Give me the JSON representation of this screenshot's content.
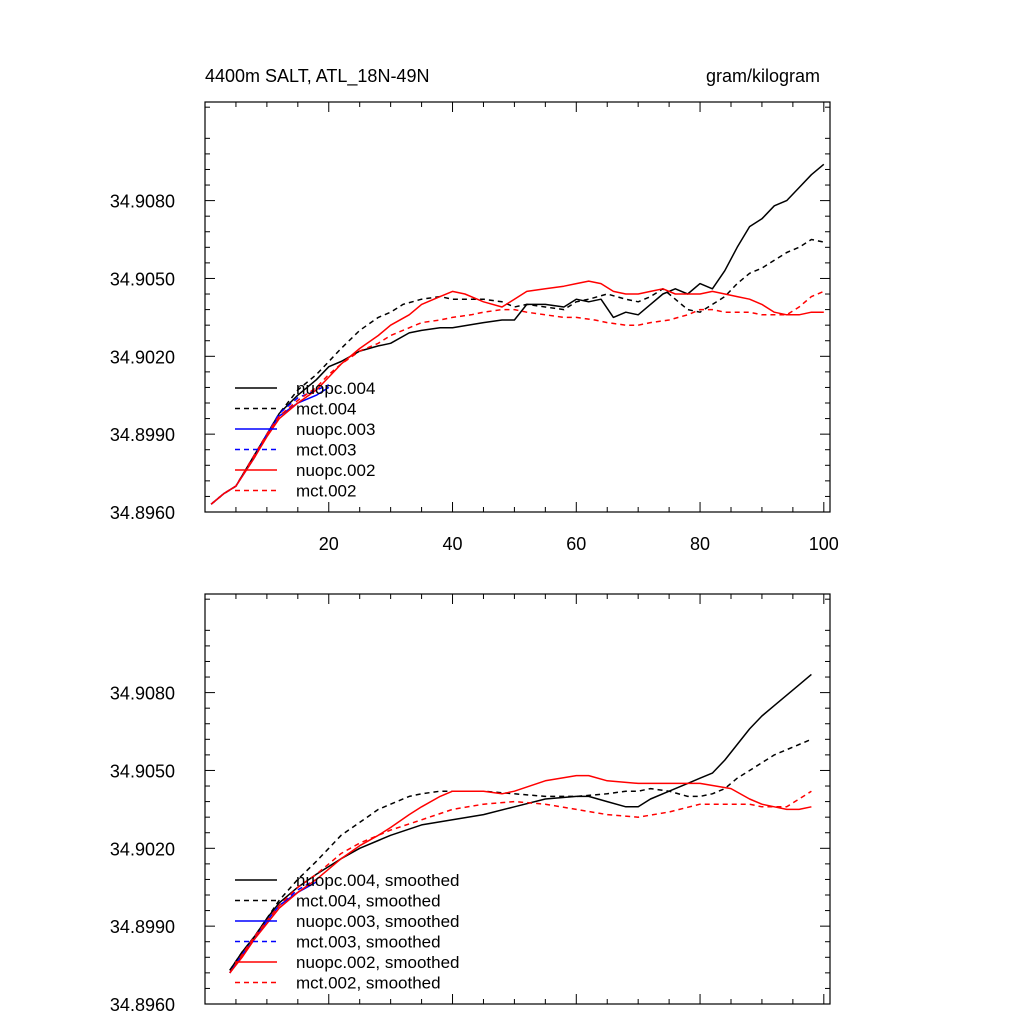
{
  "chart_data": [
    {
      "type": "line",
      "title": "4400m SALT, ATL_18N-49N",
      "title_right": "gram/kilogram",
      "xlim": [
        0,
        101
      ],
      "ylim": [
        34.896,
        34.9118
      ],
      "x_ticks": [
        20,
        40,
        60,
        80,
        100
      ],
      "x_tick_labels": [
        "20",
        "40",
        "60",
        "80",
        "100"
      ],
      "y_ticks": [
        34.896,
        34.899,
        34.902,
        34.905,
        34.908
      ],
      "y_tick_labels": [
        "34.8960",
        "34.8990",
        "34.9020",
        "34.9050",
        "34.9080"
      ],
      "grid": false,
      "legend_position": "bottom-left",
      "series": [
        {
          "name": "nuopc.004",
          "color": "#000000",
          "dash": "solid",
          "x": [
            1,
            3,
            5,
            8,
            10,
            12,
            15,
            18,
            20,
            22,
            25,
            28,
            30,
            33,
            35,
            38,
            40,
            45,
            48,
            50,
            52,
            55,
            58,
            60,
            62,
            64,
            66,
            68,
            70,
            72,
            74,
            76,
            78,
            80,
            82,
            84,
            86,
            88,
            90,
            92,
            94,
            96,
            98,
            100
          ],
          "y": [
            34.8963,
            34.8967,
            34.897,
            34.8982,
            34.899,
            34.8998,
            34.9005,
            34.9011,
            34.9016,
            34.9018,
            34.9022,
            34.9024,
            34.9025,
            34.9029,
            34.903,
            34.9031,
            34.9031,
            34.9033,
            34.9034,
            34.9034,
            34.904,
            34.904,
            34.9039,
            34.9042,
            34.9041,
            34.9042,
            34.9035,
            34.9037,
            34.9036,
            34.904,
            34.9044,
            34.9046,
            34.9044,
            34.9048,
            34.9046,
            34.9053,
            34.9062,
            34.907,
            34.9073,
            34.9078,
            34.908,
            34.9085,
            34.909,
            34.9094
          ]
        },
        {
          "name": "mct.004",
          "color": "#000000",
          "dash": "dashed",
          "x": [
            1,
            3,
            5,
            8,
            10,
            12,
            15,
            18,
            20,
            22,
            25,
            28,
            30,
            32,
            35,
            38,
            40,
            45,
            48,
            50,
            52,
            55,
            58,
            60,
            62,
            65,
            68,
            70,
            72,
            74,
            76,
            78,
            80,
            82,
            84,
            86,
            88,
            90,
            92,
            94,
            96,
            98,
            100
          ],
          "y": [
            34.8963,
            34.8967,
            34.897,
            34.8982,
            34.899,
            34.8998,
            34.9007,
            34.9013,
            34.9018,
            34.9023,
            34.903,
            34.9035,
            34.9037,
            34.904,
            34.9042,
            34.9043,
            34.9042,
            34.9042,
            34.9041,
            34.9039,
            34.904,
            34.9039,
            34.9038,
            34.9041,
            34.9042,
            34.9044,
            34.9042,
            34.9041,
            34.9043,
            34.9046,
            34.9042,
            34.9038,
            34.9037,
            34.904,
            34.9043,
            34.9048,
            34.9052,
            34.9054,
            34.9057,
            34.906,
            34.9062,
            34.9065,
            34.9064
          ]
        },
        {
          "name": "nuopc.003",
          "color": "#0000ff",
          "dash": "solid",
          "x": [
            1,
            3,
            5,
            8,
            10,
            12,
            15,
            18,
            20
          ],
          "y": [
            34.8963,
            34.8967,
            34.897,
            34.8981,
            34.899,
            34.8997,
            34.9002,
            34.9005,
            34.9008
          ]
        },
        {
          "name": "mct.003",
          "color": "#0000ff",
          "dash": "dashed",
          "x": [
            1,
            3,
            5,
            8,
            10,
            12,
            15,
            18,
            20
          ],
          "y": [
            34.8963,
            34.8967,
            34.897,
            34.8982,
            34.899,
            34.8998,
            34.9004,
            34.9007,
            34.9009
          ]
        },
        {
          "name": "nuopc.002",
          "color": "#ff0000",
          "dash": "solid",
          "x": [
            1,
            3,
            5,
            8,
            10,
            12,
            15,
            18,
            20,
            22,
            25,
            28,
            30,
            33,
            35,
            38,
            40,
            42,
            45,
            48,
            50,
            52,
            55,
            58,
            60,
            62,
            64,
            66,
            68,
            70,
            72,
            74,
            76,
            78,
            80,
            82,
            84,
            86,
            88,
            90,
            92,
            94,
            96,
            98,
            100
          ],
          "y": [
            34.8963,
            34.8967,
            34.897,
            34.8981,
            34.8989,
            34.8996,
            34.9002,
            34.9007,
            34.9012,
            34.9017,
            34.9023,
            34.9028,
            34.9032,
            34.9036,
            34.904,
            34.9043,
            34.9045,
            34.9044,
            34.9041,
            34.9039,
            34.9042,
            34.9045,
            34.9046,
            34.9047,
            34.9048,
            34.9049,
            34.9048,
            34.9045,
            34.9044,
            34.9044,
            34.9045,
            34.9046,
            34.9044,
            34.9044,
            34.9044,
            34.9045,
            34.9044,
            34.9043,
            34.9042,
            34.904,
            34.9037,
            34.9036,
            34.9036,
            34.9037,
            34.9037
          ]
        },
        {
          "name": "mct.002",
          "color": "#ff0000",
          "dash": "dashed",
          "x": [
            1,
            3,
            5,
            8,
            10,
            12,
            15,
            18,
            20,
            22,
            25,
            28,
            30,
            33,
            35,
            38,
            40,
            43,
            45,
            48,
            50,
            52,
            55,
            58,
            60,
            63,
            65,
            68,
            70,
            72,
            75,
            78,
            80,
            82,
            84,
            86,
            88,
            90,
            92,
            94,
            96,
            98,
            100
          ],
          "y": [
            34.8963,
            34.8967,
            34.897,
            34.8982,
            34.899,
            34.8997,
            34.9003,
            34.9008,
            34.9013,
            34.9017,
            34.9022,
            34.9025,
            34.9028,
            34.9031,
            34.9033,
            34.9034,
            34.9035,
            34.9036,
            34.9037,
            34.9038,
            34.9038,
            34.9037,
            34.9036,
            34.9035,
            34.9035,
            34.9034,
            34.9033,
            34.9032,
            34.9032,
            34.9033,
            34.9034,
            34.9036,
            34.9038,
            34.9038,
            34.9037,
            34.9037,
            34.9037,
            34.9036,
            34.9036,
            34.9036,
            34.9039,
            34.9043,
            34.9045
          ]
        }
      ]
    },
    {
      "type": "line",
      "title": "",
      "xlim": [
        0,
        101
      ],
      "ylim": [
        34.896,
        34.9118
      ],
      "x_ticks": [
        20,
        40,
        60,
        80,
        100
      ],
      "y_ticks": [
        34.896,
        34.899,
        34.902,
        34.905,
        34.908
      ],
      "y_tick_labels": [
        "34.8960",
        "34.8990",
        "34.9020",
        "34.9050",
        "34.9080"
      ],
      "grid": false,
      "legend_position": "bottom-left",
      "series": [
        {
          "name": "nuopc.004, smoothed",
          "color": "#000000",
          "dash": "solid",
          "x": [
            4,
            6,
            8,
            10,
            12,
            15,
            18,
            20,
            22,
            25,
            28,
            30,
            35,
            40,
            45,
            50,
            55,
            60,
            62,
            65,
            68,
            70,
            72,
            75,
            78,
            80,
            82,
            84,
            86,
            88,
            90,
            92,
            94,
            96,
            98
          ],
          "y": [
            34.8973,
            34.898,
            34.8986,
            34.8993,
            34.8999,
            34.9005,
            34.901,
            34.9013,
            34.9016,
            34.902,
            34.9023,
            34.9025,
            34.9029,
            34.9031,
            34.9033,
            34.9036,
            34.9039,
            34.904,
            34.904,
            34.9038,
            34.9036,
            34.9036,
            34.9039,
            34.9042,
            34.9045,
            34.9047,
            34.9049,
            34.9054,
            34.906,
            34.9066,
            34.9071,
            34.9075,
            34.9079,
            34.9083,
            34.9087
          ]
        },
        {
          "name": "mct.004, smoothed",
          "color": "#000000",
          "dash": "dashed",
          "x": [
            4,
            6,
            8,
            10,
            12,
            15,
            18,
            20,
            22,
            25,
            28,
            30,
            33,
            35,
            38,
            40,
            45,
            50,
            55,
            60,
            65,
            68,
            70,
            72,
            75,
            78,
            80,
            82,
            84,
            86,
            88,
            90,
            92,
            94,
            96,
            98
          ],
          "y": [
            34.8973,
            34.898,
            34.8986,
            34.8993,
            34.9,
            34.9008,
            34.9015,
            34.902,
            34.9025,
            34.903,
            34.9035,
            34.9037,
            34.904,
            34.9041,
            34.9042,
            34.9042,
            34.9042,
            34.9041,
            34.904,
            34.904,
            34.9041,
            34.9042,
            34.9042,
            34.9043,
            34.9042,
            34.904,
            34.904,
            34.9041,
            34.9043,
            34.9047,
            34.905,
            34.9053,
            34.9056,
            34.9058,
            34.906,
            34.9062
          ]
        },
        {
          "name": "nuopc.003, smoothed",
          "color": "#0000ff",
          "dash": "solid",
          "x": [
            4,
            6,
            8,
            10,
            12,
            15,
            18
          ],
          "y": [
            34.8972,
            34.8979,
            34.8985,
            34.8992,
            34.8998,
            34.9003,
            34.9007
          ]
        },
        {
          "name": "mct.003, smoothed",
          "color": "#0000ff",
          "dash": "dashed",
          "x": [
            4,
            6,
            8,
            10,
            12,
            15,
            18
          ],
          "y": [
            34.8972,
            34.8979,
            34.8986,
            34.8992,
            34.8998,
            34.9004,
            34.9008
          ]
        },
        {
          "name": "nuopc.002, smoothed",
          "color": "#ff0000",
          "dash": "solid",
          "x": [
            4,
            6,
            8,
            10,
            12,
            15,
            18,
            20,
            22,
            25,
            28,
            30,
            33,
            35,
            38,
            40,
            45,
            48,
            50,
            55,
            60,
            62,
            65,
            70,
            75,
            80,
            85,
            88,
            90,
            92,
            94,
            96,
            98
          ],
          "y": [
            34.8972,
            34.8978,
            34.8985,
            34.8991,
            34.8997,
            34.9003,
            34.9008,
            34.9012,
            34.9016,
            34.9021,
            34.9025,
            34.9028,
            34.9033,
            34.9036,
            34.904,
            34.9042,
            34.9042,
            34.9041,
            34.9042,
            34.9046,
            34.9048,
            34.9048,
            34.9046,
            34.9045,
            34.9045,
            34.9045,
            34.9043,
            34.9039,
            34.9037,
            34.9036,
            34.9035,
            34.9035,
            34.9036
          ]
        },
        {
          "name": "mct.002, smoothed",
          "color": "#ff0000",
          "dash": "dashed",
          "x": [
            4,
            6,
            8,
            10,
            12,
            15,
            18,
            20,
            22,
            25,
            28,
            30,
            35,
            40,
            45,
            50,
            55,
            60,
            65,
            70,
            75,
            80,
            85,
            88,
            90,
            92,
            94,
            96,
            98
          ],
          "y": [
            34.8972,
            34.8979,
            34.8986,
            34.8992,
            34.8998,
            34.9005,
            34.901,
            34.9014,
            34.9018,
            34.9022,
            34.9025,
            34.9027,
            34.9031,
            34.9035,
            34.9037,
            34.9038,
            34.9037,
            34.9035,
            34.9033,
            34.9032,
            34.9034,
            34.9037,
            34.9037,
            34.9037,
            34.9036,
            34.9036,
            34.9036,
            34.9039,
            34.9042
          ]
        }
      ]
    }
  ]
}
